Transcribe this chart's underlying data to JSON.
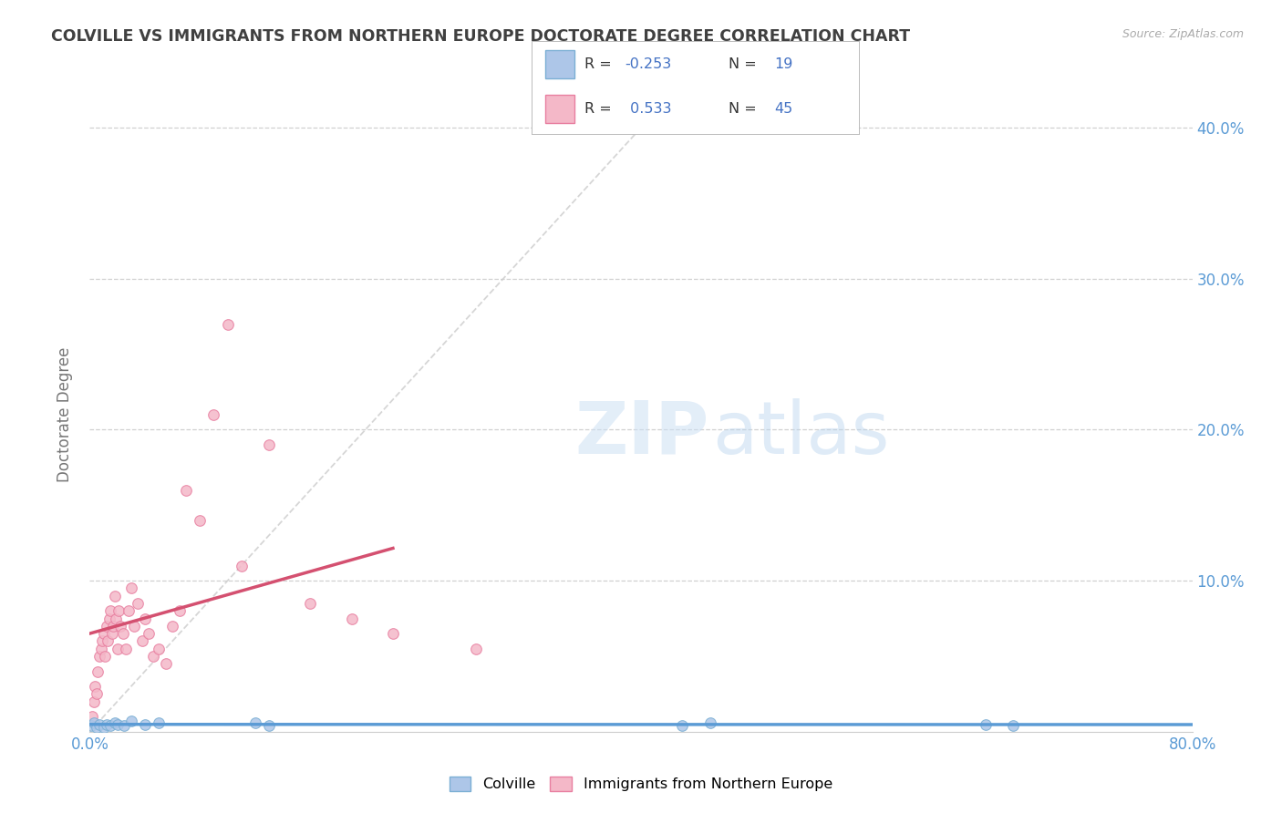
{
  "title": "COLVILLE VS IMMIGRANTS FROM NORTHERN EUROPE DOCTORATE DEGREE CORRELATION CHART",
  "source": "Source: ZipAtlas.com",
  "ylabel": "Doctorate Degree",
  "colville_color": "#adc6e8",
  "immigrants_color": "#f4b8c8",
  "colville_edge_color": "#7bafd4",
  "immigrants_edge_color": "#e87fa0",
  "line_color_colville": "#5b9bd5",
  "line_color_immigrants": "#d45070",
  "diagonal_color": "#cccccc",
  "title_color": "#404040",
  "axis_color": "#5b9bd5",
  "grid_color": "#d0d0d0",
  "background_color": "#ffffff",
  "marker_size": 70,
  "colville_x": [
    0.001,
    0.003,
    0.005,
    0.007,
    0.01,
    0.012,
    0.015,
    0.018,
    0.02,
    0.025,
    0.03,
    0.04,
    0.05,
    0.12,
    0.13,
    0.43,
    0.45,
    0.65,
    0.67
  ],
  "colville_y": [
    0.004,
    0.006,
    0.003,
    0.005,
    0.003,
    0.005,
    0.004,
    0.006,
    0.005,
    0.004,
    0.007,
    0.005,
    0.006,
    0.006,
    0.004,
    0.004,
    0.006,
    0.005,
    0.004
  ],
  "immigrants_x": [
    0.002,
    0.003,
    0.004,
    0.005,
    0.006,
    0.007,
    0.008,
    0.009,
    0.01,
    0.011,
    0.012,
    0.013,
    0.014,
    0.015,
    0.016,
    0.017,
    0.018,
    0.019,
    0.02,
    0.021,
    0.022,
    0.024,
    0.026,
    0.028,
    0.03,
    0.032,
    0.035,
    0.038,
    0.04,
    0.043,
    0.046,
    0.05,
    0.055,
    0.06,
    0.065,
    0.07,
    0.08,
    0.09,
    0.1,
    0.11,
    0.13,
    0.16,
    0.19,
    0.22,
    0.28
  ],
  "immigrants_y": [
    0.01,
    0.02,
    0.03,
    0.025,
    0.04,
    0.05,
    0.055,
    0.06,
    0.065,
    0.05,
    0.07,
    0.06,
    0.075,
    0.08,
    0.065,
    0.07,
    0.09,
    0.075,
    0.055,
    0.08,
    0.07,
    0.065,
    0.055,
    0.08,
    0.095,
    0.07,
    0.085,
    0.06,
    0.075,
    0.065,
    0.05,
    0.055,
    0.045,
    0.07,
    0.08,
    0.16,
    0.14,
    0.21,
    0.27,
    0.11,
    0.19,
    0.085,
    0.075,
    0.065,
    0.055
  ],
  "xlim": [
    0.0,
    0.8
  ],
  "ylim": [
    0.0,
    0.42
  ],
  "ytick_positions": [
    0.1,
    0.2,
    0.3,
    0.4
  ],
  "ytick_labels_right": [
    "10.0%",
    "20.0%",
    "30.0%",
    "40.0%"
  ]
}
